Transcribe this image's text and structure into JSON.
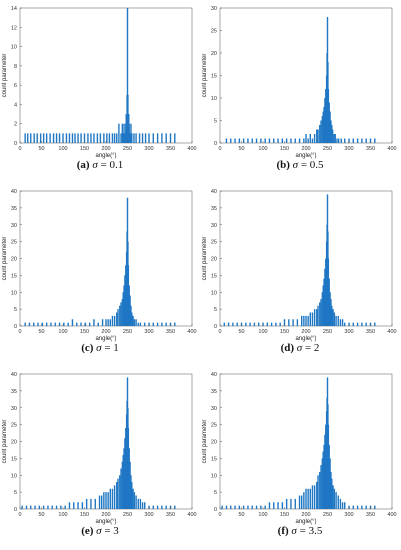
{
  "chart_data": [
    {
      "id": "a",
      "type": "bar",
      "caption_letter": "(a)",
      "caption_var": "σ",
      "caption_rest": " = 0.1",
      "xlabel": "angle(°)",
      "ylabel": "count parameter",
      "xlim": [
        0,
        400
      ],
      "ylim": [
        0,
        14
      ],
      "xticks": [
        0,
        50,
        100,
        150,
        200,
        250,
        300,
        350,
        400
      ],
      "yticks": [
        0,
        2,
        4,
        6,
        8,
        10,
        12,
        14
      ],
      "series": [
        {
          "x": [
            12,
            18,
            25,
            33,
            40,
            48,
            55,
            62,
            70,
            78,
            85,
            92,
            100,
            108,
            115,
            122,
            128,
            135,
            142,
            150,
            158,
            165,
            172,
            180,
            187,
            195,
            202,
            208,
            215,
            220,
            225,
            230,
            235,
            238,
            240,
            242,
            244,
            246,
            247,
            248,
            249,
            250,
            251,
            252,
            253,
            254,
            256,
            258,
            260,
            265,
            270,
            278,
            285,
            292,
            300,
            310,
            320,
            330,
            340,
            350,
            360
          ],
          "y": [
            1,
            1,
            1,
            1,
            1,
            1,
            1,
            1,
            1,
            1,
            1,
            1,
            1,
            1,
            1,
            1,
            1,
            1,
            1,
            1,
            1,
            1,
            1,
            1,
            1,
            1,
            1,
            1,
            1,
            1,
            1,
            2,
            1,
            2,
            1,
            2,
            1,
            2,
            3,
            2,
            5,
            14,
            5,
            2,
            3,
            2,
            1,
            2,
            1,
            1,
            1,
            1,
            1,
            1,
            1,
            1,
            1,
            1,
            1,
            1,
            1
          ]
        }
      ]
    },
    {
      "id": "b",
      "type": "bar",
      "caption_letter": "(b)",
      "caption_var": "σ",
      "caption_rest": " = 0.5",
      "xlabel": "angle(°)",
      "ylabel": "count parameter",
      "xlim": [
        0,
        400
      ],
      "ylim": [
        0,
        30
      ],
      "xticks": [
        0,
        50,
        100,
        150,
        200,
        250,
        300,
        350,
        400
      ],
      "yticks": [
        0,
        5,
        10,
        15,
        20,
        25,
        30
      ],
      "series": [
        {
          "x": [
            15,
            25,
            35,
            45,
            55,
            65,
            75,
            85,
            95,
            105,
            115,
            125,
            135,
            145,
            155,
            165,
            175,
            185,
            195,
            200,
            205,
            210,
            215,
            220,
            225,
            228,
            232,
            235,
            238,
            240,
            242,
            244,
            246,
            248,
            249,
            250,
            251,
            252,
            254,
            256,
            258,
            260,
            262,
            265,
            268,
            272,
            276,
            282,
            290,
            300,
            310,
            320,
            330,
            340,
            350,
            360
          ],
          "y": [
            1,
            1,
            1,
            1,
            1,
            1,
            1,
            1,
            1,
            1,
            1,
            1,
            1,
            1,
            1,
            1,
            1,
            1,
            1,
            2,
            1,
            2,
            1,
            2,
            3,
            3,
            4,
            5,
            6,
            7,
            8,
            10,
            12,
            15,
            20,
            28,
            18,
            12,
            9,
            7,
            5,
            4,
            3,
            2,
            2,
            1,
            1,
            1,
            1,
            1,
            1,
            1,
            1,
            1,
            1,
            1
          ]
        }
      ]
    },
    {
      "id": "c",
      "type": "bar",
      "caption_letter": "(c)",
      "caption_var": "σ",
      "caption_rest": " = 1",
      "xlabel": "angle(°)",
      "ylabel": "count parameter",
      "xlim": [
        0,
        400
      ],
      "ylim": [
        0,
        40
      ],
      "xticks": [
        0,
        50,
        100,
        150,
        200,
        250,
        300,
        350,
        400
      ],
      "yticks": [
        0,
        5,
        10,
        15,
        20,
        25,
        30,
        35,
        40
      ],
      "series": [
        {
          "x": [
            12,
            22,
            32,
            42,
            52,
            62,
            72,
            82,
            92,
            102,
            112,
            122,
            132,
            142,
            152,
            162,
            172,
            182,
            192,
            200,
            205,
            210,
            215,
            220,
            225,
            228,
            232,
            235,
            238,
            240,
            242,
            244,
            246,
            248,
            249,
            250,
            251,
            252,
            254,
            256,
            258,
            260,
            263,
            266,
            270,
            275,
            280,
            290,
            300,
            310,
            320,
            330,
            340,
            350,
            360
          ],
          "y": [
            1,
            1,
            1,
            1,
            1,
            1,
            1,
            1,
            1,
            1,
            1,
            2,
            1,
            1,
            1,
            1,
            2,
            1,
            2,
            2,
            2,
            2,
            3,
            3,
            4,
            5,
            6,
            7,
            8,
            10,
            12,
            15,
            18,
            22,
            28,
            38,
            25,
            18,
            12,
            9,
            6,
            4,
            3,
            2,
            2,
            1,
            1,
            1,
            1,
            1,
            1,
            1,
            1,
            1,
            1
          ]
        }
      ]
    },
    {
      "id": "d",
      "type": "bar",
      "caption_letter": "(d)",
      "caption_var": "σ",
      "caption_rest": " = 2",
      "xlabel": "angle(°)",
      "ylabel": "count parameter",
      "xlim": [
        0,
        400
      ],
      "ylim": [
        0,
        40
      ],
      "xticks": [
        0,
        50,
        100,
        150,
        200,
        250,
        300,
        350,
        400
      ],
      "yticks": [
        0,
        5,
        10,
        15,
        20,
        25,
        30,
        35,
        40
      ],
      "series": [
        {
          "x": [
            10,
            20,
            30,
            40,
            50,
            60,
            70,
            80,
            90,
            100,
            110,
            120,
            130,
            140,
            150,
            160,
            170,
            180,
            190,
            195,
            200,
            205,
            210,
            215,
            220,
            225,
            228,
            232,
            235,
            238,
            240,
            242,
            244,
            246,
            248,
            249,
            250,
            251,
            252,
            254,
            256,
            258,
            260,
            263,
            266,
            270,
            275,
            280,
            285,
            290,
            300,
            310,
            320,
            330,
            340,
            350,
            360
          ],
          "y": [
            1,
            1,
            1,
            1,
            1,
            1,
            1,
            1,
            1,
            1,
            1,
            1,
            1,
            1,
            2,
            2,
            2,
            2,
            3,
            3,
            3,
            3,
            4,
            4,
            5,
            5,
            6,
            7,
            8,
            10,
            12,
            14,
            17,
            20,
            25,
            30,
            39,
            28,
            20,
            14,
            10,
            8,
            6,
            5,
            4,
            3,
            3,
            2,
            2,
            1,
            1,
            1,
            1,
            1,
            1,
            1,
            1
          ]
        }
      ]
    },
    {
      "id": "e",
      "type": "bar",
      "caption_letter": "(e)",
      "caption_var": "σ",
      "caption_rest": " = 3",
      "xlabel": "angle(°)",
      "ylabel": "count parameter",
      "xlim": [
        0,
        400
      ],
      "ylim": [
        0,
        40
      ],
      "xticks": [
        0,
        50,
        100,
        150,
        200,
        250,
        300,
        350,
        400
      ],
      "yticks": [
        0,
        5,
        10,
        15,
        20,
        25,
        30,
        35,
        40
      ],
      "series": [
        {
          "x": [
            5,
            15,
            25,
            35,
            45,
            55,
            65,
            75,
            85,
            95,
            105,
            115,
            125,
            135,
            145,
            155,
            165,
            175,
            185,
            190,
            195,
            200,
            205,
            210,
            215,
            220,
            225,
            228,
            232,
            235,
            238,
            240,
            242,
            244,
            246,
            248,
            249,
            250,
            251,
            252,
            254,
            256,
            258,
            260,
            263,
            266,
            270,
            275,
            280,
            285,
            290,
            300,
            310,
            320,
            330,
            340,
            350,
            360
          ],
          "y": [
            1,
            1,
            1,
            1,
            1,
            1,
            1,
            1,
            1,
            1,
            1,
            2,
            2,
            2,
            2,
            3,
            3,
            3,
            4,
            4,
            5,
            5,
            5,
            6,
            6,
            7,
            8,
            9,
            10,
            12,
            14,
            16,
            18,
            21,
            24,
            28,
            32,
            39,
            30,
            24,
            18,
            14,
            10,
            8,
            6,
            5,
            4,
            3,
            3,
            2,
            2,
            1,
            1,
            1,
            1,
            1,
            1,
            1
          ]
        }
      ]
    },
    {
      "id": "f",
      "type": "bar",
      "caption_letter": "(f)",
      "caption_var": "σ",
      "caption_rest": " = 3.5",
      "xlabel": "angle(°)",
      "ylabel": "count parameter",
      "xlim": [
        0,
        400
      ],
      "ylim": [
        0,
        40
      ],
      "xticks": [
        0,
        50,
        100,
        150,
        200,
        250,
        300,
        350,
        400
      ],
      "yticks": [
        0,
        5,
        10,
        15,
        20,
        25,
        30,
        35,
        40
      ],
      "series": [
        {
          "x": [
            5,
            15,
            25,
            35,
            45,
            55,
            65,
            75,
            85,
            95,
            105,
            115,
            125,
            135,
            145,
            155,
            165,
            175,
            185,
            190,
            195,
            200,
            205,
            210,
            215,
            220,
            225,
            228,
            232,
            235,
            238,
            240,
            242,
            244,
            246,
            248,
            249,
            250,
            251,
            252,
            254,
            256,
            258,
            260,
            263,
            266,
            270,
            275,
            280,
            285,
            290,
            300,
            310,
            320,
            330,
            340,
            350,
            360
          ],
          "y": [
            1,
            1,
            1,
            1,
            1,
            1,
            1,
            1,
            1,
            1,
            1,
            2,
            2,
            2,
            2,
            3,
            3,
            3,
            4,
            4,
            5,
            6,
            6,
            6,
            7,
            7,
            8,
            10,
            11,
            13,
            15,
            17,
            19,
            22,
            25,
            29,
            33,
            39,
            31,
            25,
            19,
            15,
            11,
            9,
            7,
            6,
            5,
            4,
            3,
            2,
            2,
            1,
            1,
            1,
            1,
            1,
            1,
            1
          ]
        }
      ]
    }
  ],
  "style": {
    "bar_color": "#1f77c4",
    "axis_color": "#555555"
  }
}
